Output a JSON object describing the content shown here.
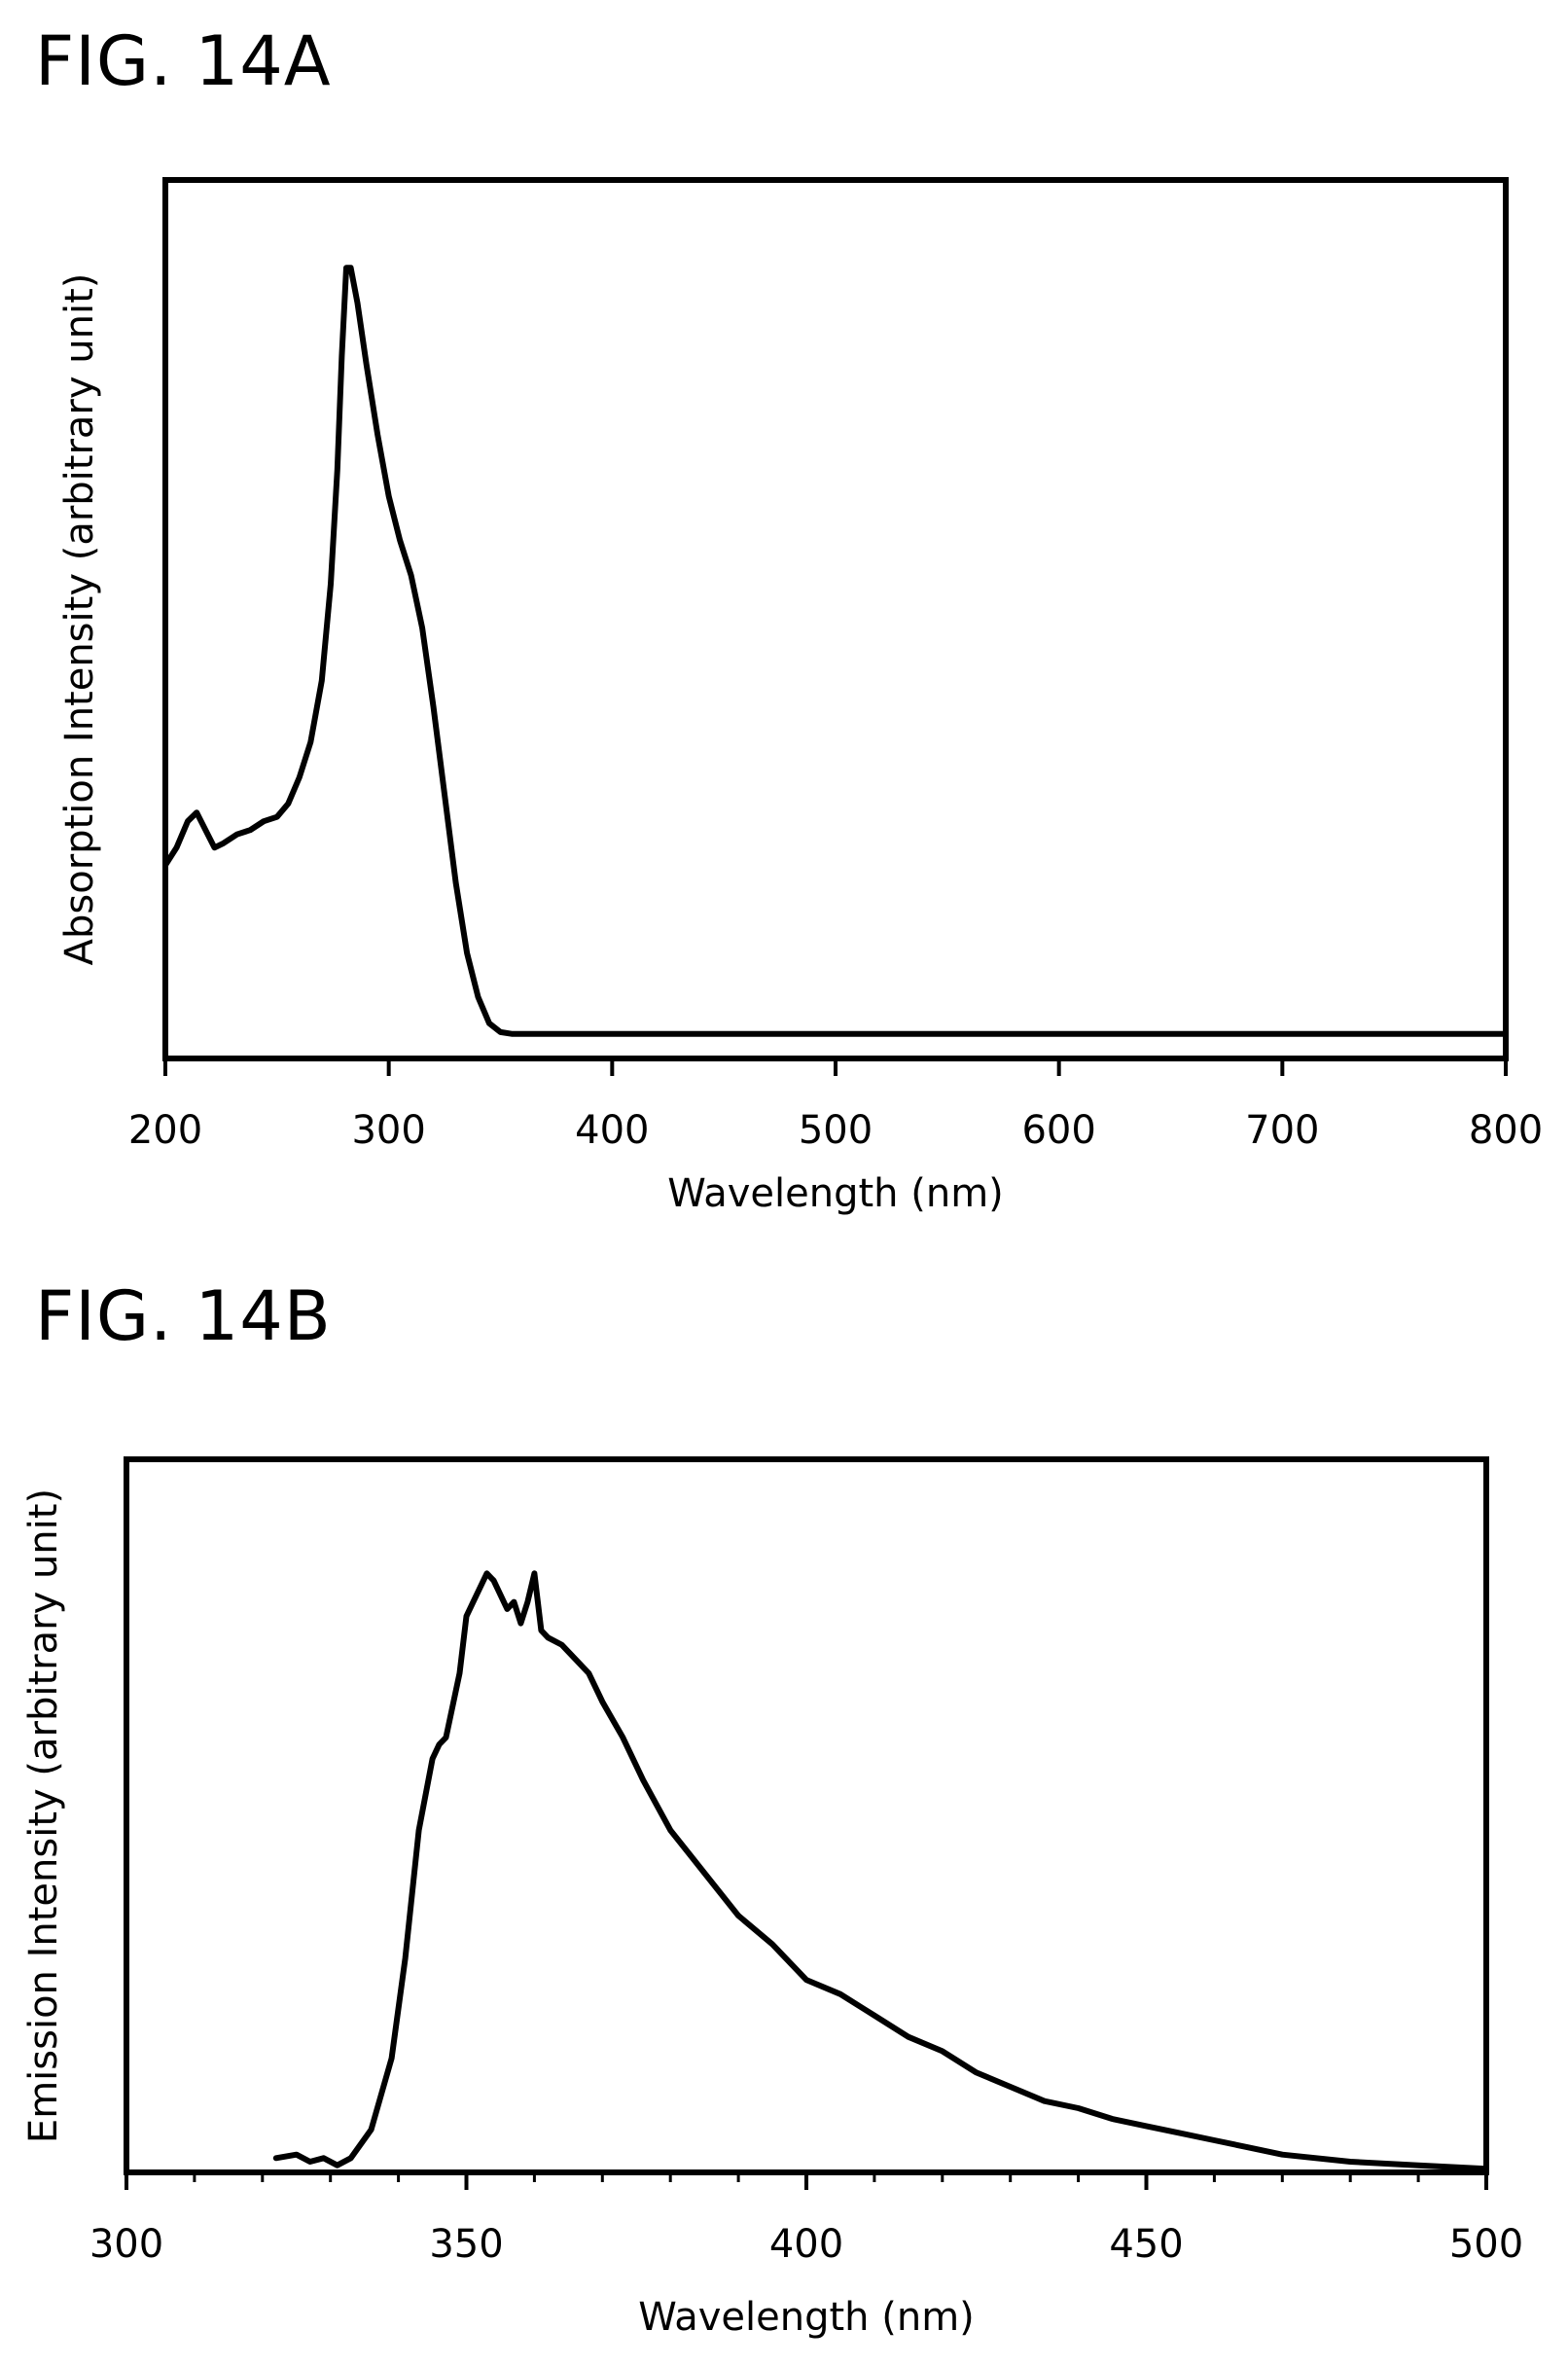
{
  "figures": [
    {
      "id": "a",
      "title": "FIG. 14A"
    },
    {
      "id": "b",
      "title": "FIG. 14B"
    }
  ],
  "chart_data": [
    {
      "type": "line",
      "title": "FIG. 14A",
      "xlabel": "Wavelength (nm)",
      "ylabel": "Absorption Intensity (arbitrary unit)",
      "xlim": [
        200,
        800
      ],
      "ylim": [
        0,
        1
      ],
      "xticks": [
        200,
        300,
        400,
        500,
        600,
        700,
        800
      ],
      "grid": false,
      "legend": "none",
      "series": [
        {
          "x": [
            200,
            205,
            210,
            214,
            218,
            222,
            226,
            232,
            238,
            244,
            250,
            255,
            260,
            265,
            270,
            274,
            277,
            279,
            281,
            283,
            286,
            290,
            295,
            300,
            305,
            310,
            315,
            320,
            325,
            330,
            335,
            340,
            345,
            350,
            355,
            360,
            380,
            400,
            500,
            600,
            700,
            800
          ],
          "y": [
            0.22,
            0.24,
            0.27,
            0.28,
            0.26,
            0.24,
            0.245,
            0.255,
            0.26,
            0.27,
            0.275,
            0.29,
            0.32,
            0.36,
            0.43,
            0.54,
            0.67,
            0.8,
            0.9,
            0.9,
            0.86,
            0.79,
            0.71,
            0.64,
            0.59,
            0.55,
            0.49,
            0.4,
            0.3,
            0.2,
            0.12,
            0.07,
            0.04,
            0.03,
            0.028,
            0.028,
            0.028,
            0.028,
            0.028,
            0.028,
            0.028,
            0.028
          ]
        }
      ]
    },
    {
      "type": "line",
      "title": "FIG. 14B",
      "xlabel": "Wavelength (nm)",
      "ylabel": "Emission Intensity (arbitrary unit)",
      "xlim": [
        300,
        500
      ],
      "ylim": [
        0,
        1
      ],
      "xticks": [
        300,
        350,
        400,
        450,
        500
      ],
      "grid": false,
      "legend": "none",
      "series": [
        {
          "x": [
            322,
            325,
            327,
            329,
            331,
            333,
            336,
            339,
            341,
            343,
            345,
            346,
            347,
            349,
            350,
            351,
            352,
            353,
            354,
            355,
            356,
            357,
            358,
            359,
            360,
            361,
            362,
            364,
            366,
            368,
            370,
            373,
            376,
            380,
            385,
            390,
            395,
            400,
            405,
            410,
            415,
            420,
            425,
            430,
            435,
            440,
            445,
            450,
            455,
            460,
            465,
            470,
            480,
            490,
            500
          ],
          "y": [
            0.02,
            0.025,
            0.015,
            0.02,
            0.01,
            0.02,
            0.06,
            0.16,
            0.3,
            0.48,
            0.58,
            0.6,
            0.61,
            0.7,
            0.78,
            0.8,
            0.82,
            0.84,
            0.83,
            0.81,
            0.79,
            0.8,
            0.77,
            0.8,
            0.84,
            0.76,
            0.75,
            0.74,
            0.72,
            0.7,
            0.66,
            0.61,
            0.55,
            0.48,
            0.42,
            0.36,
            0.32,
            0.27,
            0.25,
            0.22,
            0.19,
            0.17,
            0.14,
            0.12,
            0.1,
            0.09,
            0.075,
            0.065,
            0.055,
            0.045,
            0.035,
            0.025,
            0.015,
            0.01,
            0.005
          ]
        }
      ]
    }
  ]
}
